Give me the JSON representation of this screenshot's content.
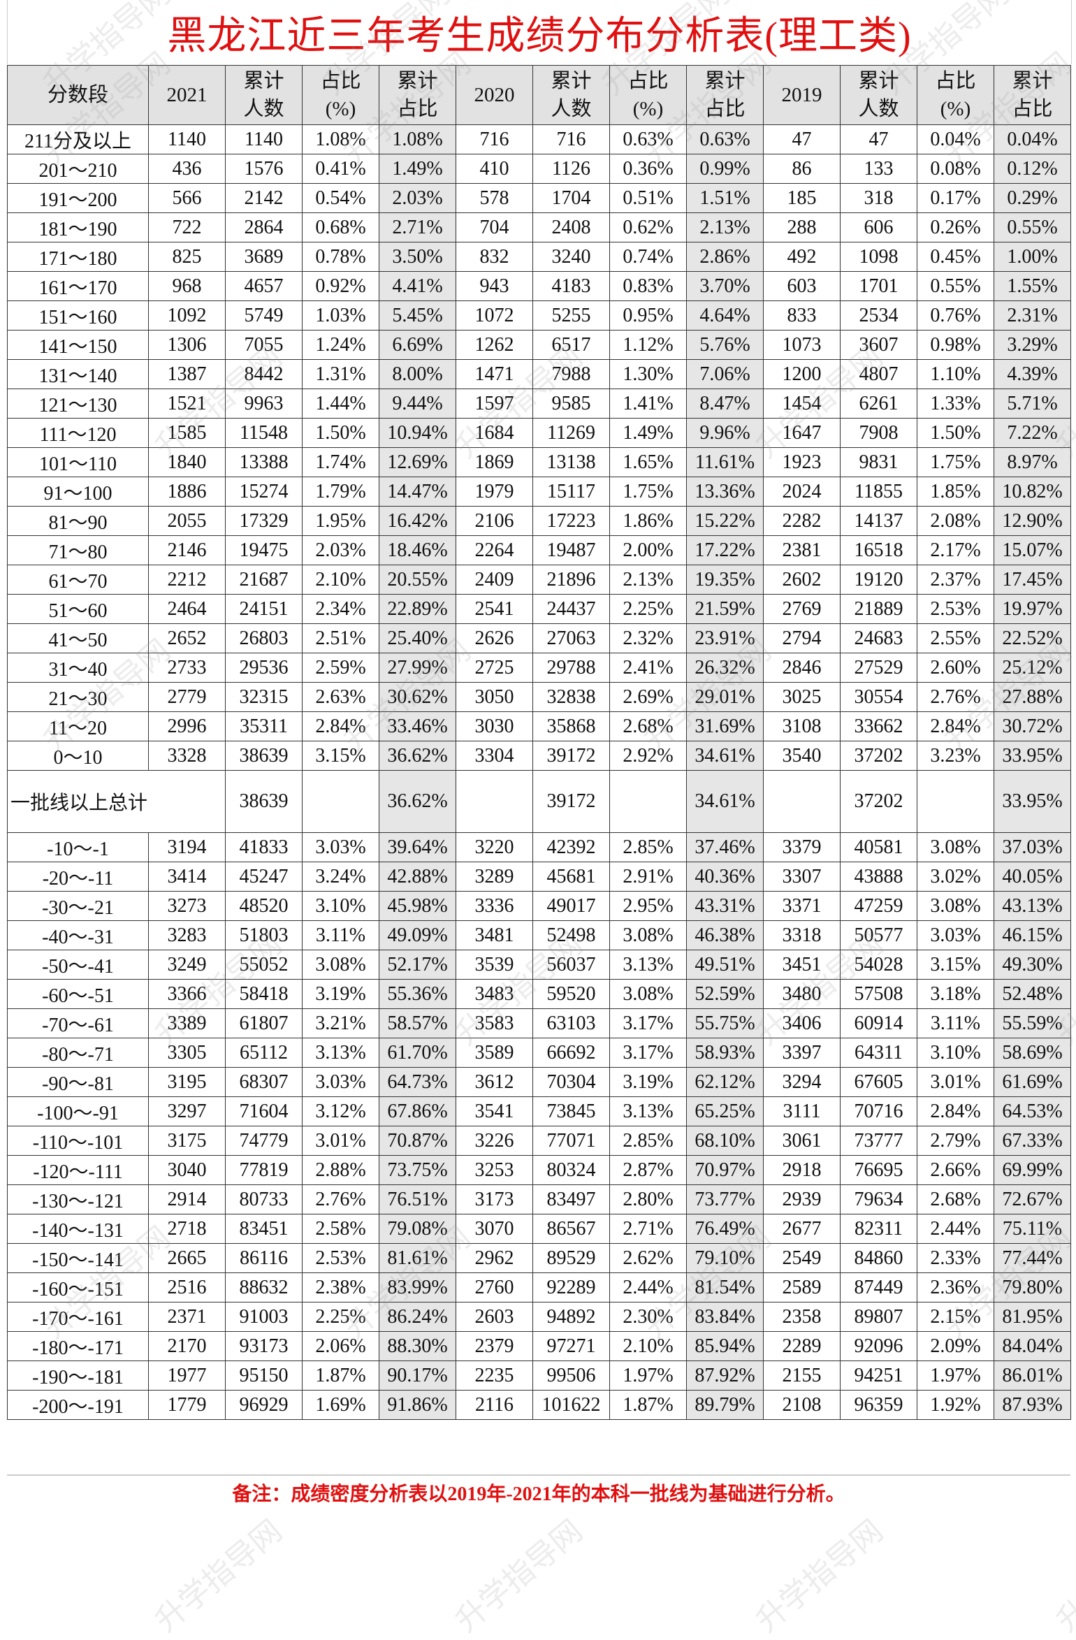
{
  "title": "黑龙江近三年考生成绩分布分析表(理工类)",
  "watermark": "升学指导网",
  "colors": {
    "title": "#e01010",
    "header_bg": "#e2e2e2",
    "shaded_column": "#e6e6e6"
  },
  "headers": [
    "分数段",
    "2021",
    "累计\n人数",
    "占比\n(%)",
    "累计\n占比",
    "2020",
    "累计\n人数",
    "占比\n(%)",
    "累计\n占比",
    "2019",
    "累计\n人数",
    "占比\n(%)",
    "累计\n占比"
  ],
  "rows_upper": [
    [
      "211分及以上",
      "1140",
      "1140",
      "1.08%",
      "1.08%",
      "716",
      "716",
      "0.63%",
      "0.63%",
      "47",
      "47",
      "0.04%",
      "0.04%"
    ],
    [
      "201～210",
      "436",
      "1576",
      "0.41%",
      "1.49%",
      "410",
      "1126",
      "0.36%",
      "0.99%",
      "86",
      "133",
      "0.08%",
      "0.12%"
    ],
    [
      "191～200",
      "566",
      "2142",
      "0.54%",
      "2.03%",
      "578",
      "1704",
      "0.51%",
      "1.51%",
      "185",
      "318",
      "0.17%",
      "0.29%"
    ],
    [
      "181～190",
      "722",
      "2864",
      "0.68%",
      "2.71%",
      "704",
      "2408",
      "0.62%",
      "2.13%",
      "288",
      "606",
      "0.26%",
      "0.55%"
    ],
    [
      "171～180",
      "825",
      "3689",
      "0.78%",
      "3.50%",
      "832",
      "3240",
      "0.74%",
      "2.86%",
      "492",
      "1098",
      "0.45%",
      "1.00%"
    ],
    [
      "161～170",
      "968",
      "4657",
      "0.92%",
      "4.41%",
      "943",
      "4183",
      "0.83%",
      "3.70%",
      "603",
      "1701",
      "0.55%",
      "1.55%"
    ],
    [
      "151～160",
      "1092",
      "5749",
      "1.03%",
      "5.45%",
      "1072",
      "5255",
      "0.95%",
      "4.64%",
      "833",
      "2534",
      "0.76%",
      "2.31%"
    ],
    [
      "141～150",
      "1306",
      "7055",
      "1.24%",
      "6.69%",
      "1262",
      "6517",
      "1.12%",
      "5.76%",
      "1073",
      "3607",
      "0.98%",
      "3.29%"
    ],
    [
      "131～140",
      "1387",
      "8442",
      "1.31%",
      "8.00%",
      "1471",
      "7988",
      "1.30%",
      "7.06%",
      "1200",
      "4807",
      "1.10%",
      "4.39%"
    ],
    [
      "121～130",
      "1521",
      "9963",
      "1.44%",
      "9.44%",
      "1597",
      "9585",
      "1.41%",
      "8.47%",
      "1454",
      "6261",
      "1.33%",
      "5.71%"
    ],
    [
      "111～120",
      "1585",
      "11548",
      "1.50%",
      "10.94%",
      "1684",
      "11269",
      "1.49%",
      "9.96%",
      "1647",
      "7908",
      "1.50%",
      "7.22%"
    ],
    [
      "101～110",
      "1840",
      "13388",
      "1.74%",
      "12.69%",
      "1869",
      "13138",
      "1.65%",
      "11.61%",
      "1923",
      "9831",
      "1.75%",
      "8.97%"
    ],
    [
      "91～100",
      "1886",
      "15274",
      "1.79%",
      "14.47%",
      "1979",
      "15117",
      "1.75%",
      "13.36%",
      "2024",
      "11855",
      "1.85%",
      "10.82%"
    ],
    [
      "81～90",
      "2055",
      "17329",
      "1.95%",
      "16.42%",
      "2106",
      "17223",
      "1.86%",
      "15.22%",
      "2282",
      "14137",
      "2.08%",
      "12.90%"
    ],
    [
      "71～80",
      "2146",
      "19475",
      "2.03%",
      "18.46%",
      "2264",
      "19487",
      "2.00%",
      "17.22%",
      "2381",
      "16518",
      "2.17%",
      "15.07%"
    ],
    [
      "61～70",
      "2212",
      "21687",
      "2.10%",
      "20.55%",
      "2409",
      "21896",
      "2.13%",
      "19.35%",
      "2602",
      "19120",
      "2.37%",
      "17.45%"
    ],
    [
      "51～60",
      "2464",
      "24151",
      "2.34%",
      "22.89%",
      "2541",
      "24437",
      "2.25%",
      "21.59%",
      "2769",
      "21889",
      "2.53%",
      "19.97%"
    ],
    [
      "41～50",
      "2652",
      "26803",
      "2.51%",
      "25.40%",
      "2626",
      "27063",
      "2.32%",
      "23.91%",
      "2794",
      "24683",
      "2.55%",
      "22.52%"
    ],
    [
      "31～40",
      "2733",
      "29536",
      "2.59%",
      "27.99%",
      "2725",
      "29788",
      "2.41%",
      "26.32%",
      "2846",
      "27529",
      "2.60%",
      "25.12%"
    ],
    [
      "21～30",
      "2779",
      "32315",
      "2.63%",
      "30.62%",
      "3050",
      "32838",
      "2.69%",
      "29.01%",
      "3025",
      "30554",
      "2.76%",
      "27.88%"
    ],
    [
      "11～20",
      "2996",
      "35311",
      "2.84%",
      "33.46%",
      "3030",
      "35868",
      "2.68%",
      "31.69%",
      "3108",
      "33662",
      "2.84%",
      "30.72%"
    ],
    [
      "0～10",
      "3328",
      "38639",
      "3.15%",
      "36.62%",
      "3304",
      "39172",
      "2.92%",
      "34.61%",
      "3540",
      "37202",
      "3.23%",
      "33.95%"
    ]
  ],
  "summary": [
    "一批线以上总计",
    "38639",
    "",
    "36.62%",
    "",
    "39172",
    "",
    "34.61%",
    "",
    "37202",
    "",
    "33.95%"
  ],
  "rows_lower": [
    [
      "-10～-1",
      "3194",
      "41833",
      "3.03%",
      "39.64%",
      "3220",
      "42392",
      "2.85%",
      "37.46%",
      "3379",
      "40581",
      "3.08%",
      "37.03%"
    ],
    [
      "-20～-11",
      "3414",
      "45247",
      "3.24%",
      "42.88%",
      "3289",
      "45681",
      "2.91%",
      "40.36%",
      "3307",
      "43888",
      "3.02%",
      "40.05%"
    ],
    [
      "-30～-21",
      "3273",
      "48520",
      "3.10%",
      "45.98%",
      "3336",
      "49017",
      "2.95%",
      "43.31%",
      "3371",
      "47259",
      "3.08%",
      "43.13%"
    ],
    [
      "-40～-31",
      "3283",
      "51803",
      "3.11%",
      "49.09%",
      "3481",
      "52498",
      "3.08%",
      "46.38%",
      "3318",
      "50577",
      "3.03%",
      "46.15%"
    ],
    [
      "-50～-41",
      "3249",
      "55052",
      "3.08%",
      "52.17%",
      "3539",
      "56037",
      "3.13%",
      "49.51%",
      "3451",
      "54028",
      "3.15%",
      "49.30%"
    ],
    [
      "-60～-51",
      "3366",
      "58418",
      "3.19%",
      "55.36%",
      "3483",
      "59520",
      "3.08%",
      "52.59%",
      "3480",
      "57508",
      "3.18%",
      "52.48%"
    ],
    [
      "-70～-61",
      "3389",
      "61807",
      "3.21%",
      "58.57%",
      "3583",
      "63103",
      "3.17%",
      "55.75%",
      "3406",
      "60914",
      "3.11%",
      "55.59%"
    ],
    [
      "-80～-71",
      "3305",
      "65112",
      "3.13%",
      "61.70%",
      "3589",
      "66692",
      "3.17%",
      "58.93%",
      "3397",
      "64311",
      "3.10%",
      "58.69%"
    ],
    [
      "-90～-81",
      "3195",
      "68307",
      "3.03%",
      "64.73%",
      "3612",
      "70304",
      "3.19%",
      "62.12%",
      "3294",
      "67605",
      "3.01%",
      "61.69%"
    ],
    [
      "-100～-91",
      "3297",
      "71604",
      "3.12%",
      "67.86%",
      "3541",
      "73845",
      "3.13%",
      "65.25%",
      "3111",
      "70716",
      "2.84%",
      "64.53%"
    ],
    [
      "-110～-101",
      "3175",
      "74779",
      "3.01%",
      "70.87%",
      "3226",
      "77071",
      "2.85%",
      "68.10%",
      "3061",
      "73777",
      "2.79%",
      "67.33%"
    ],
    [
      "-120～-111",
      "3040",
      "77819",
      "2.88%",
      "73.75%",
      "3253",
      "80324",
      "2.87%",
      "70.97%",
      "2918",
      "76695",
      "2.66%",
      "69.99%"
    ],
    [
      "-130～-121",
      "2914",
      "80733",
      "2.76%",
      "76.51%",
      "3173",
      "83497",
      "2.80%",
      "73.77%",
      "2939",
      "79634",
      "2.68%",
      "72.67%"
    ],
    [
      "-140～-131",
      "2718",
      "83451",
      "2.58%",
      "79.08%",
      "3070",
      "86567",
      "2.71%",
      "76.49%",
      "2677",
      "82311",
      "2.44%",
      "75.11%"
    ],
    [
      "-150～-141",
      "2665",
      "86116",
      "2.53%",
      "81.61%",
      "2962",
      "89529",
      "2.62%",
      "79.10%",
      "2549",
      "84860",
      "2.33%",
      "77.44%"
    ],
    [
      "-160～-151",
      "2516",
      "88632",
      "2.38%",
      "83.99%",
      "2760",
      "92289",
      "2.44%",
      "81.54%",
      "2589",
      "87449",
      "2.36%",
      "79.80%"
    ],
    [
      "-170～-161",
      "2371",
      "91003",
      "2.25%",
      "86.24%",
      "2603",
      "94892",
      "2.30%",
      "83.84%",
      "2358",
      "89807",
      "2.15%",
      "81.95%"
    ],
    [
      "-180～-171",
      "2170",
      "93173",
      "2.06%",
      "88.30%",
      "2379",
      "97271",
      "2.10%",
      "85.94%",
      "2289",
      "92096",
      "2.09%",
      "84.04%"
    ],
    [
      "-190～-181",
      "1977",
      "95150",
      "1.87%",
      "90.17%",
      "2235",
      "99506",
      "1.97%",
      "87.92%",
      "2155",
      "94251",
      "1.97%",
      "86.01%"
    ],
    [
      "-200～-191",
      "1779",
      "96929",
      "1.69%",
      "91.86%",
      "2116",
      "101622",
      "1.87%",
      "89.79%",
      "2108",
      "96359",
      "1.92%",
      "87.93%"
    ]
  ],
  "note": "备注：成绩密度分析表以2019年-2021年的本科一批线为基础进行分析。"
}
